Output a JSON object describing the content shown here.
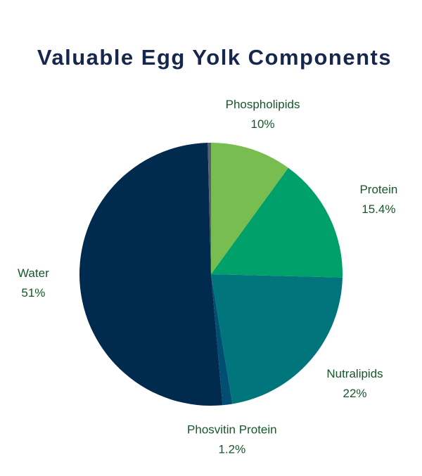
{
  "chart_data": {
    "type": "pie",
    "title": "Valuable Egg Yolk Components",
    "categories": [
      "Phospholipids",
      "Protein",
      "Nutralipids",
      "Phosvitin Protein",
      "Water",
      null
    ],
    "values": [
      10,
      15.4,
      22,
      1.2,
      51,
      0.4
    ],
    "value_labels": [
      "10%",
      "15.4%",
      "22%",
      "1.2%",
      "51%",
      null
    ],
    "colors": [
      "#77bd4f",
      "#00a06a",
      "#00767c",
      "#004f72",
      "#002a4e",
      "#5c5f70"
    ]
  }
}
